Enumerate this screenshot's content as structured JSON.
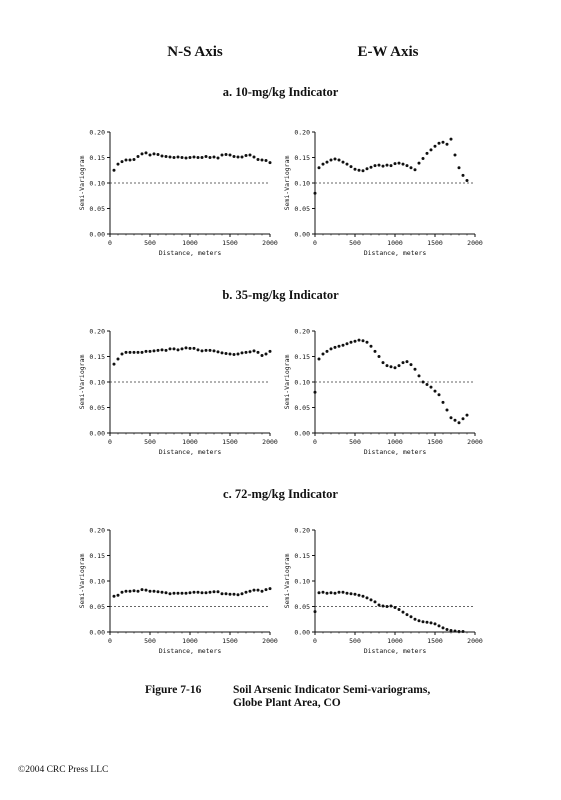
{
  "column_headers": {
    "left": "N-S Axis",
    "right": "E-W Axis"
  },
  "panel_titles": [
    "a.  10-mg/kg Indicator",
    "b.  35-mg/kg Indicator",
    "c.  72-mg/kg Indicator"
  ],
  "caption": {
    "figure": "Figure 7-16",
    "line1": "Soil Arsenic Indicator Semi-variograms,",
    "line2": "Globe Plant Area, CO"
  },
  "copyright": "©2004 CRC Press LLC",
  "chart_data": [
    {
      "type": "scatter",
      "panel": "a",
      "axis": "N-S",
      "xlabel": "Distance, meters",
      "ylabel": "Semi-Variogram",
      "xlim": [
        0,
        2000
      ],
      "ylim": [
        0,
        0.2
      ],
      "xticks": [
        0,
        500,
        1000,
        1500,
        2000
      ],
      "yticks": [
        0.0,
        0.05,
        0.1,
        0.15,
        0.2
      ],
      "sill": 0.1,
      "x": [
        50,
        100,
        150,
        200,
        250,
        300,
        350,
        400,
        450,
        500,
        550,
        600,
        650,
        700,
        750,
        800,
        850,
        900,
        950,
        1000,
        1050,
        1100,
        1150,
        1200,
        1250,
        1300,
        1350,
        1400,
        1450,
        1500,
        1550,
        1600,
        1650,
        1700,
        1750,
        1800,
        1850,
        1900,
        1950,
        2000
      ],
      "y": [
        0.125,
        0.137,
        0.142,
        0.145,
        0.145,
        0.146,
        0.152,
        0.157,
        0.159,
        0.155,
        0.157,
        0.156,
        0.153,
        0.152,
        0.151,
        0.15,
        0.151,
        0.15,
        0.149,
        0.15,
        0.151,
        0.15,
        0.15,
        0.152,
        0.15,
        0.151,
        0.149,
        0.155,
        0.156,
        0.155,
        0.152,
        0.151,
        0.151,
        0.154,
        0.155,
        0.151,
        0.146,
        0.145,
        0.144,
        0.14
      ]
    },
    {
      "type": "scatter",
      "panel": "a",
      "axis": "E-W",
      "xlabel": "Distance, meters",
      "ylabel": "Semi-Variogram",
      "xlim": [
        0,
        2000
      ],
      "ylim": [
        0,
        0.2
      ],
      "xticks": [
        0,
        500,
        1000,
        1500,
        2000
      ],
      "yticks": [
        0.0,
        0.05,
        0.1,
        0.15,
        0.2
      ],
      "sill": 0.1,
      "x": [
        0,
        50,
        100,
        150,
        200,
        250,
        300,
        350,
        400,
        450,
        500,
        550,
        600,
        650,
        700,
        750,
        800,
        850,
        900,
        950,
        1000,
        1050,
        1100,
        1150,
        1200,
        1250,
        1300,
        1350,
        1400,
        1450,
        1500,
        1550,
        1600,
        1650,
        1700,
        1750,
        1800,
        1850,
        1900
      ],
      "y": [
        0.08,
        0.13,
        0.137,
        0.141,
        0.145,
        0.147,
        0.145,
        0.141,
        0.137,
        0.132,
        0.127,
        0.125,
        0.124,
        0.128,
        0.131,
        0.134,
        0.135,
        0.133,
        0.135,
        0.134,
        0.138,
        0.139,
        0.137,
        0.134,
        0.13,
        0.126,
        0.139,
        0.148,
        0.158,
        0.165,
        0.172,
        0.178,
        0.18,
        0.176,
        0.186,
        0.155,
        0.13,
        0.115,
        0.105
      ]
    },
    {
      "type": "scatter",
      "panel": "b",
      "axis": "N-S",
      "xlabel": "Distance, meters",
      "ylabel": "Semi-Variogram",
      "xlim": [
        0,
        2000
      ],
      "ylim": [
        0,
        0.2
      ],
      "xticks": [
        0,
        500,
        1000,
        1500,
        2000
      ],
      "yticks": [
        0.0,
        0.05,
        0.1,
        0.15,
        0.2
      ],
      "sill": 0.1,
      "x": [
        50,
        100,
        150,
        200,
        250,
        300,
        350,
        400,
        450,
        500,
        550,
        600,
        650,
        700,
        750,
        800,
        850,
        900,
        950,
        1000,
        1050,
        1100,
        1150,
        1200,
        1250,
        1300,
        1350,
        1400,
        1450,
        1500,
        1550,
        1600,
        1650,
        1700,
        1750,
        1800,
        1850,
        1900,
        1950,
        2000
      ],
      "y": [
        0.135,
        0.145,
        0.155,
        0.158,
        0.158,
        0.158,
        0.158,
        0.158,
        0.16,
        0.16,
        0.161,
        0.162,
        0.163,
        0.162,
        0.165,
        0.165,
        0.163,
        0.165,
        0.167,
        0.166,
        0.166,
        0.163,
        0.161,
        0.162,
        0.162,
        0.161,
        0.159,
        0.157,
        0.156,
        0.155,
        0.154,
        0.155,
        0.157,
        0.158,
        0.159,
        0.161,
        0.158,
        0.152,
        0.155,
        0.16
      ]
    },
    {
      "type": "scatter",
      "panel": "b",
      "axis": "E-W",
      "xlabel": "Distance, meters",
      "ylabel": "Semi-Variogram",
      "xlim": [
        0,
        2000
      ],
      "ylim": [
        0,
        0.2
      ],
      "xticks": [
        0,
        500,
        1000,
        1500,
        2000
      ],
      "yticks": [
        0.0,
        0.05,
        0.1,
        0.15,
        0.2
      ],
      "sill": 0.1,
      "x": [
        0,
        50,
        100,
        150,
        200,
        250,
        300,
        350,
        400,
        450,
        500,
        550,
        600,
        650,
        700,
        750,
        800,
        850,
        900,
        950,
        1000,
        1050,
        1100,
        1150,
        1200,
        1250,
        1300,
        1350,
        1400,
        1450,
        1500,
        1550,
        1600,
        1650,
        1700,
        1750,
        1800,
        1850,
        1900
      ],
      "y": [
        0.08,
        0.145,
        0.155,
        0.16,
        0.165,
        0.168,
        0.17,
        0.172,
        0.175,
        0.178,
        0.18,
        0.182,
        0.181,
        0.178,
        0.17,
        0.16,
        0.15,
        0.138,
        0.132,
        0.13,
        0.128,
        0.132,
        0.138,
        0.14,
        0.134,
        0.125,
        0.112,
        0.1,
        0.095,
        0.09,
        0.082,
        0.075,
        0.06,
        0.045,
        0.03,
        0.025,
        0.02,
        0.028,
        0.035
      ]
    },
    {
      "type": "scatter",
      "panel": "c",
      "axis": "N-S",
      "xlabel": "Distance, meters",
      "ylabel": "Semi-Variogram",
      "xlim": [
        0,
        2000
      ],
      "ylim": [
        0,
        0.2
      ],
      "xticks": [
        0,
        500,
        1000,
        1500,
        2000
      ],
      "yticks": [
        0.0,
        0.05,
        0.1,
        0.15,
        0.2
      ],
      "sill": 0.05,
      "x": [
        50,
        100,
        150,
        200,
        250,
        300,
        350,
        400,
        450,
        500,
        550,
        600,
        650,
        700,
        750,
        800,
        850,
        900,
        950,
        1000,
        1050,
        1100,
        1150,
        1200,
        1250,
        1300,
        1350,
        1400,
        1450,
        1500,
        1550,
        1600,
        1650,
        1700,
        1750,
        1800,
        1850,
        1900,
        1950,
        2000
      ],
      "y": [
        0.07,
        0.072,
        0.078,
        0.08,
        0.08,
        0.081,
        0.08,
        0.083,
        0.082,
        0.08,
        0.08,
        0.079,
        0.078,
        0.077,
        0.075,
        0.076,
        0.076,
        0.076,
        0.076,
        0.077,
        0.078,
        0.078,
        0.077,
        0.077,
        0.078,
        0.079,
        0.079,
        0.075,
        0.075,
        0.074,
        0.074,
        0.073,
        0.075,
        0.078,
        0.08,
        0.082,
        0.082,
        0.08,
        0.083,
        0.085
      ]
    },
    {
      "type": "scatter",
      "panel": "c",
      "axis": "E-W",
      "xlabel": "Distance, meters",
      "ylabel": "Semi-Variogram",
      "xlim": [
        0,
        2000
      ],
      "ylim": [
        0,
        0.2
      ],
      "xticks": [
        0,
        500,
        1000,
        1500,
        2000
      ],
      "yticks": [
        0.0,
        0.05,
        0.1,
        0.15,
        0.2
      ],
      "sill": 0.05,
      "x": [
        0,
        50,
        100,
        150,
        200,
        250,
        300,
        350,
        400,
        450,
        500,
        550,
        600,
        650,
        700,
        750,
        800,
        850,
        900,
        950,
        1000,
        1050,
        1100,
        1150,
        1200,
        1250,
        1300,
        1350,
        1400,
        1450,
        1500,
        1550,
        1600,
        1650,
        1700,
        1750,
        1800,
        1850
      ],
      "y": [
        0.04,
        0.077,
        0.078,
        0.076,
        0.077,
        0.076,
        0.078,
        0.078,
        0.076,
        0.075,
        0.074,
        0.072,
        0.07,
        0.067,
        0.063,
        0.059,
        0.053,
        0.051,
        0.05,
        0.051,
        0.048,
        0.044,
        0.039,
        0.034,
        0.03,
        0.025,
        0.022,
        0.02,
        0.019,
        0.018,
        0.016,
        0.012,
        0.008,
        0.005,
        0.003,
        0.002,
        0.001,
        0.001
      ]
    }
  ]
}
